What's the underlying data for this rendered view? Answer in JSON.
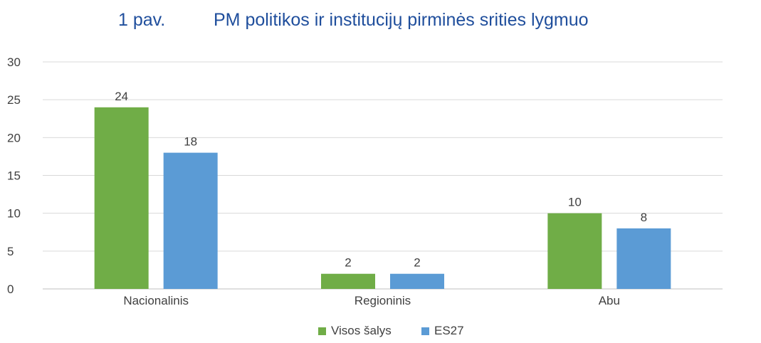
{
  "chart_data": {
    "type": "bar",
    "title_prefix": "1 pav.",
    "title": "PM politikos ir institucijų pirminės srities lygmuo",
    "xlabel": "",
    "ylabel": "",
    "categories": [
      "Nacionalinis",
      "Regioninis",
      "Abu"
    ],
    "series": [
      {
        "name": "Visos šalys",
        "values": [
          24,
          2,
          10
        ],
        "color": "#70ad47"
      },
      {
        "name": "ES27",
        "values": [
          18,
          2,
          8
        ],
        "color": "#5b9bd5"
      }
    ],
    "ylim": [
      0,
      30
    ],
    "yticks": [
      0,
      5,
      10,
      15,
      20,
      25,
      30
    ],
    "grid": true,
    "legend_position": "bottom",
    "data_labels": true
  }
}
